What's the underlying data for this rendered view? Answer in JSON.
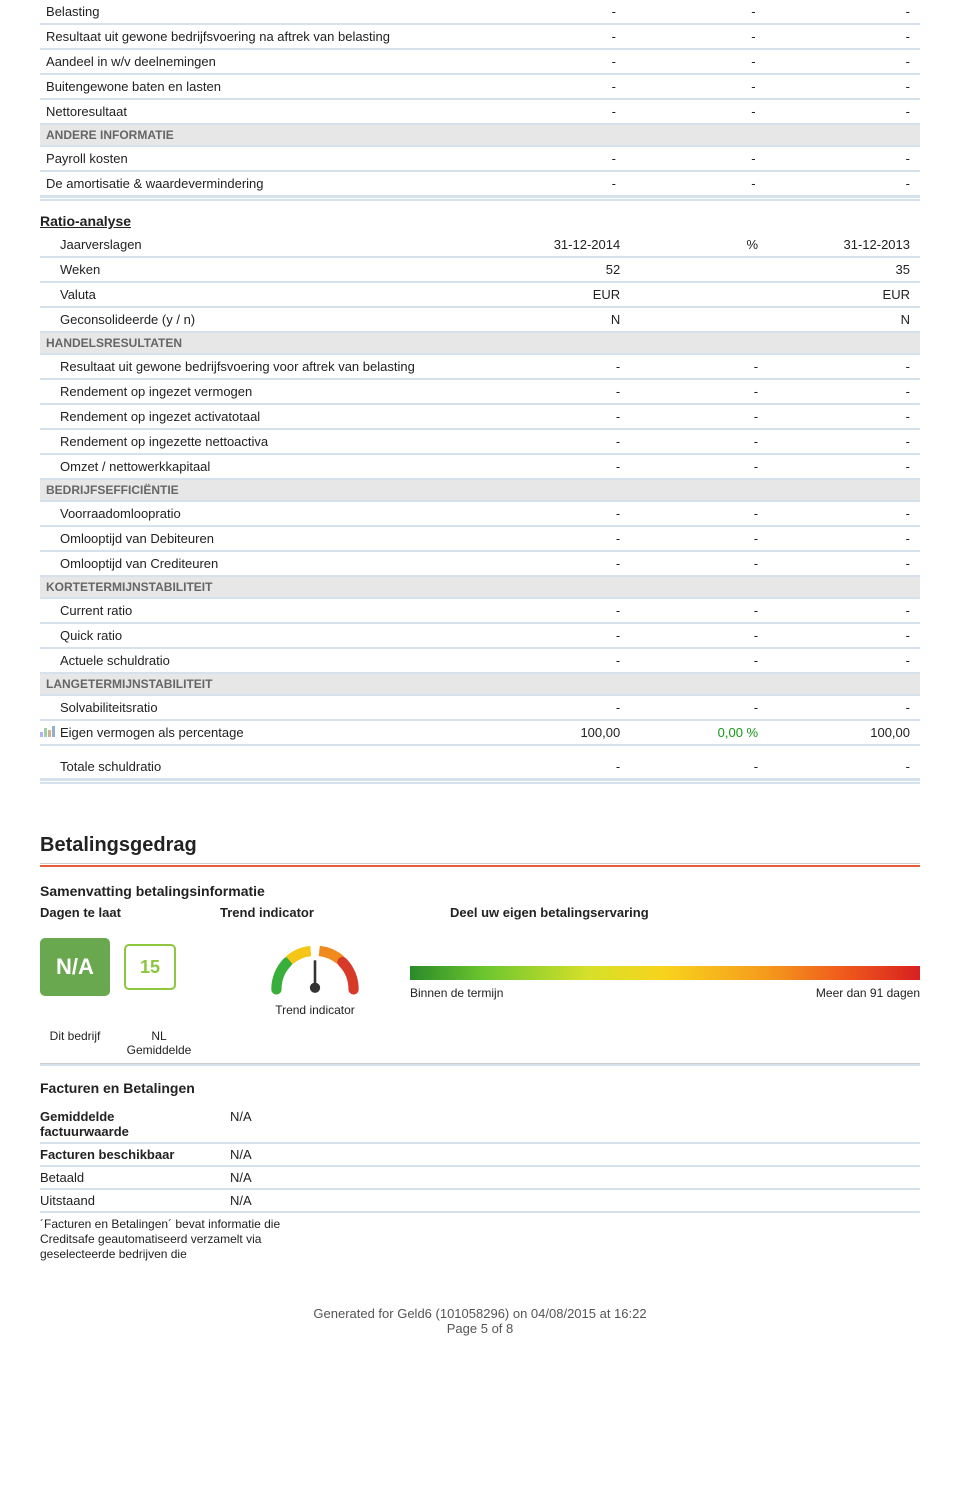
{
  "top_rows": [
    {
      "label": "Belasting",
      "c1": "-",
      "c2": "-",
      "c3": "-"
    },
    {
      "label": "Resultaat uit gewone bedrijfsvoering na aftrek van belasting",
      "c1": "-",
      "c2": "-",
      "c3": "-"
    },
    {
      "label": "Aandeel in w/v deelnemingen",
      "c1": "-",
      "c2": "-",
      "c3": "-"
    },
    {
      "label": "Buitengewone baten en lasten",
      "c1": "-",
      "c2": "-",
      "c3": "-"
    },
    {
      "label": "Nettoresultaat",
      "c1": "-",
      "c2": "-",
      "c3": "-"
    }
  ],
  "andere_header": "ANDERE INFORMATIE",
  "andere_rows": [
    {
      "label": "Payroll kosten",
      "c1": "-",
      "c2": "-",
      "c3": "-"
    },
    {
      "label": "De amortisatie & waardevermindering",
      "c1": "-",
      "c2": "-",
      "c3": "-"
    }
  ],
  "ratio_title": "Ratio-analyse",
  "ratio_head": [
    {
      "label": "Jaarverslagen",
      "c1": "31-12-2014",
      "c2": "%",
      "c3": "31-12-2013"
    },
    {
      "label": "Weken",
      "c1": "52",
      "c2": "",
      "c3": "35"
    },
    {
      "label": "Valuta",
      "c1": "EUR",
      "c2": "",
      "c3": "EUR"
    },
    {
      "label": "Geconsolideerde (y / n)",
      "c1": "N",
      "c2": "",
      "c3": "N"
    }
  ],
  "groups": [
    {
      "header": "HANDELSRESULTATEN",
      "rows": [
        {
          "label": "Resultaat uit gewone bedrijfsvoering voor aftrek van belasting",
          "c1": "-",
          "c2": "-",
          "c3": "-"
        },
        {
          "label": "Rendement op ingezet vermogen",
          "c1": "-",
          "c2": "-",
          "c3": "-"
        },
        {
          "label": "Rendement op ingezet activatotaal",
          "c1": "-",
          "c2": "-",
          "c3": "-"
        },
        {
          "label": "Rendement op ingezette nettoactiva",
          "c1": "-",
          "c2": "-",
          "c3": "-"
        },
        {
          "label": "Omzet / nettowerkkapitaal",
          "c1": "-",
          "c2": "-",
          "c3": "-"
        }
      ]
    },
    {
      "header": "BEDRIJFSEFFICIËNTIE",
      "rows": [
        {
          "label": "Voorraadomloopratio",
          "c1": "-",
          "c2": "-",
          "c3": "-"
        },
        {
          "label": "Omlooptijd van Debiteuren",
          "c1": "-",
          "c2": "-",
          "c3": "-"
        },
        {
          "label": "Omlooptijd van Crediteuren",
          "c1": "-",
          "c2": "-",
          "c3": "-"
        }
      ]
    },
    {
      "header": "KORTETERMIJNSTABILITEIT",
      "rows": [
        {
          "label": "Current ratio",
          "c1": "-",
          "c2": "-",
          "c3": "-"
        },
        {
          "label": "Quick ratio",
          "c1": "-",
          "c2": "-",
          "c3": "-"
        },
        {
          "label": "Actuele schuldratio",
          "c1": "-",
          "c2": "-",
          "c3": "-"
        }
      ]
    },
    {
      "header": "LANGETERMIJNSTABILITEIT",
      "rows": [
        {
          "label": "Solvabiliteitsratio",
          "c1": "-",
          "c2": "-",
          "c3": "-"
        },
        {
          "label": "Eigen vermogen als percentage",
          "c1": "100,00",
          "c2": "0,00 %",
          "c3": "100,00",
          "icon": true,
          "green": true
        }
      ]
    }
  ],
  "total_row": {
    "label": "Totale schuldratio",
    "c1": "-",
    "c2": "-",
    "c3": "-"
  },
  "behavior": {
    "title": "Betalingsgedrag",
    "summary_title": "Samenvatting betalingsinformatie",
    "col_a": "Dagen te laat",
    "col_b": "Trend indicator",
    "col_c": "Deel uw eigen betalingservaring",
    "na": "N/A",
    "avg": "15",
    "trend_label": "Trend indicator",
    "left_label": "Binnen de termijn",
    "right_label": "Meer dan 91 dagen",
    "this_label": "Dit bedrijf",
    "nl_label1": "NL",
    "nl_label2": "Gemiddelde",
    "gradient_colors": [
      "#2a8a2a",
      "#6ec72e",
      "#d6e02a",
      "#f8d31c",
      "#f59a1c",
      "#ef5a1c",
      "#d82020"
    ],
    "gauge_colors": {
      "green": "#3aae3a",
      "yellow": "#f5c518",
      "orange": "#f08a1d",
      "red": "#d83a2a",
      "needle": "#333"
    }
  },
  "facturen": {
    "title": "Facturen en Betalingen",
    "rows": [
      {
        "l": "Gemiddelde factuurwaarde",
        "v": "N/A",
        "bold": true,
        "two": true
      },
      {
        "l": "Facturen beschikbaar",
        "v": "N/A",
        "bold": true
      },
      {
        "l": "Betaald",
        "v": "N/A"
      },
      {
        "l": "Uitstaand",
        "v": "N/A"
      }
    ],
    "note": "´Facturen en Betalingen´ bevat informatie die Creditsafe geautomatiseerd verzamelt via geselecteerde bedrijven die"
  },
  "footer": {
    "line1": "Generated for Geld6 (101058296) on 04/08/2015 at 16:22",
    "line2": "Page 5 of 8"
  },
  "colors": {
    "row_border": "#d5e2ee",
    "subhead_bg": "#e7e7e7",
    "green": "#139a13",
    "badge_green": "#6aa84f",
    "badge_border": "#8dc63f"
  }
}
